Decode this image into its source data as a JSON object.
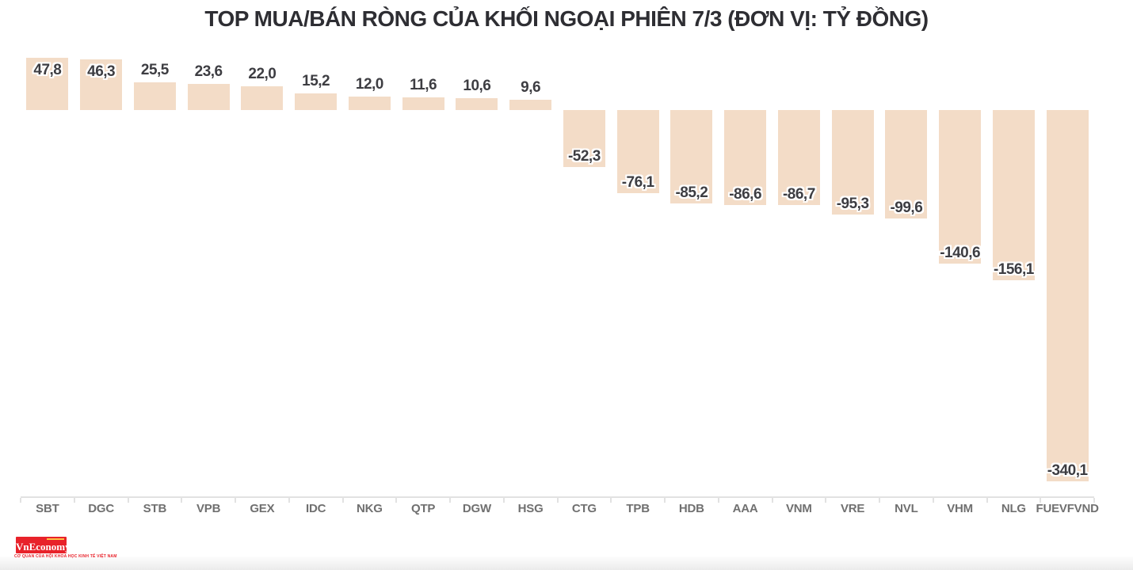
{
  "chart_data": {
    "type": "bar",
    "title": "TOP MUA/BÁN RÒNG CỦA KHỐI NGOẠI PHIÊN 7/3 (ĐƠN VỊ: TỶ ĐỒNG)",
    "categories": [
      "SBT",
      "DGC",
      "STB",
      "VPB",
      "GEX",
      "IDC",
      "NKG",
      "QTP",
      "DGW",
      "HSG",
      "CTG",
      "TPB",
      "HDB",
      "AAA",
      "VNM",
      "VRE",
      "NVL",
      "VHM",
      "NLG",
      "FUEVFVND"
    ],
    "values": [
      47.8,
      46.3,
      25.5,
      23.6,
      22.0,
      15.2,
      12.0,
      11.6,
      10.6,
      9.6,
      -52.3,
      -76.1,
      -85.2,
      -86.6,
      -86.7,
      -95.3,
      -99.6,
      -140.6,
      -156.1,
      -340.1
    ],
    "value_labels": [
      "47,8",
      "46,3",
      "25,5",
      "23,6",
      "22,0",
      "15,2",
      "12,0",
      "11,6",
      "10,6",
      "9,6",
      "-52,3",
      "-76,1",
      "-85,2",
      "-86,6",
      "-86,7",
      "-95,3",
      "-99,6",
      "-140,6",
      "-156,1",
      "-340,1"
    ],
    "xlabel": "",
    "ylabel": "",
    "unit": "tỷ đồng",
    "grid": false,
    "legend": "none",
    "bar_color": "#f3dcc7",
    "value_label_color": "#3d3d42",
    "category_label_color": "#707070",
    "axis_color": "#e2e2e2",
    "title_color": "#2e2e33"
  },
  "footer": {
    "logo_text": "VnEconomy",
    "logo_subtext": "CƠ QUAN CỦA HỘI KHOA HỌC KINH TẾ VIỆT NAM",
    "logo_bg_color": "#e8222a",
    "logo_text_color": "#ffffff",
    "logo_accent_color": "#ffd24a"
  }
}
